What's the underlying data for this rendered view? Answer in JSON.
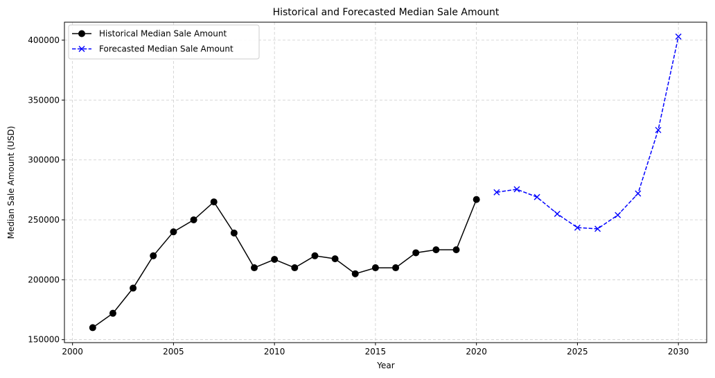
{
  "chart_data": {
    "type": "line",
    "title": "Historical and Forecasted Median Sale Amount",
    "xlabel": "Year",
    "ylabel": "Median Sale Amount (USD)",
    "xlim": [
      1999.6,
      2031.4
    ],
    "ylim": [
      147500,
      415000
    ],
    "xticks": [
      2000,
      2005,
      2010,
      2015,
      2020,
      2025,
      2030
    ],
    "yticks": [
      150000,
      200000,
      250000,
      300000,
      350000,
      400000
    ],
    "grid": true,
    "legend_position": "top-left",
    "series": [
      {
        "name": "Historical Median Sale Amount",
        "color": "#000000",
        "line_style": "solid",
        "marker": "circle",
        "x": [
          2001,
          2002,
          2003,
          2004,
          2005,
          2006,
          2007,
          2008,
          2009,
          2010,
          2011,
          2012,
          2013,
          2014,
          2015,
          2016,
          2017,
          2018,
          2019,
          2020
        ],
        "y": [
          160000,
          172000,
          193000,
          220000,
          240000,
          250000,
          265000,
          239000,
          210000,
          217000,
          210000,
          220000,
          217500,
          205000,
          210000,
          210000,
          222500,
          225000,
          225000,
          267000
        ]
      },
      {
        "name": "Forecasted Median Sale Amount",
        "color": "#0000ff",
        "line_style": "dashed",
        "marker": "x",
        "x": [
          2021,
          2022,
          2023,
          2024,
          2025,
          2026,
          2027,
          2028,
          2029,
          2030
        ],
        "y": [
          273000,
          275500,
          269000,
          255000,
          243500,
          242500,
          254000,
          272000,
          325000,
          403000
        ]
      }
    ]
  }
}
